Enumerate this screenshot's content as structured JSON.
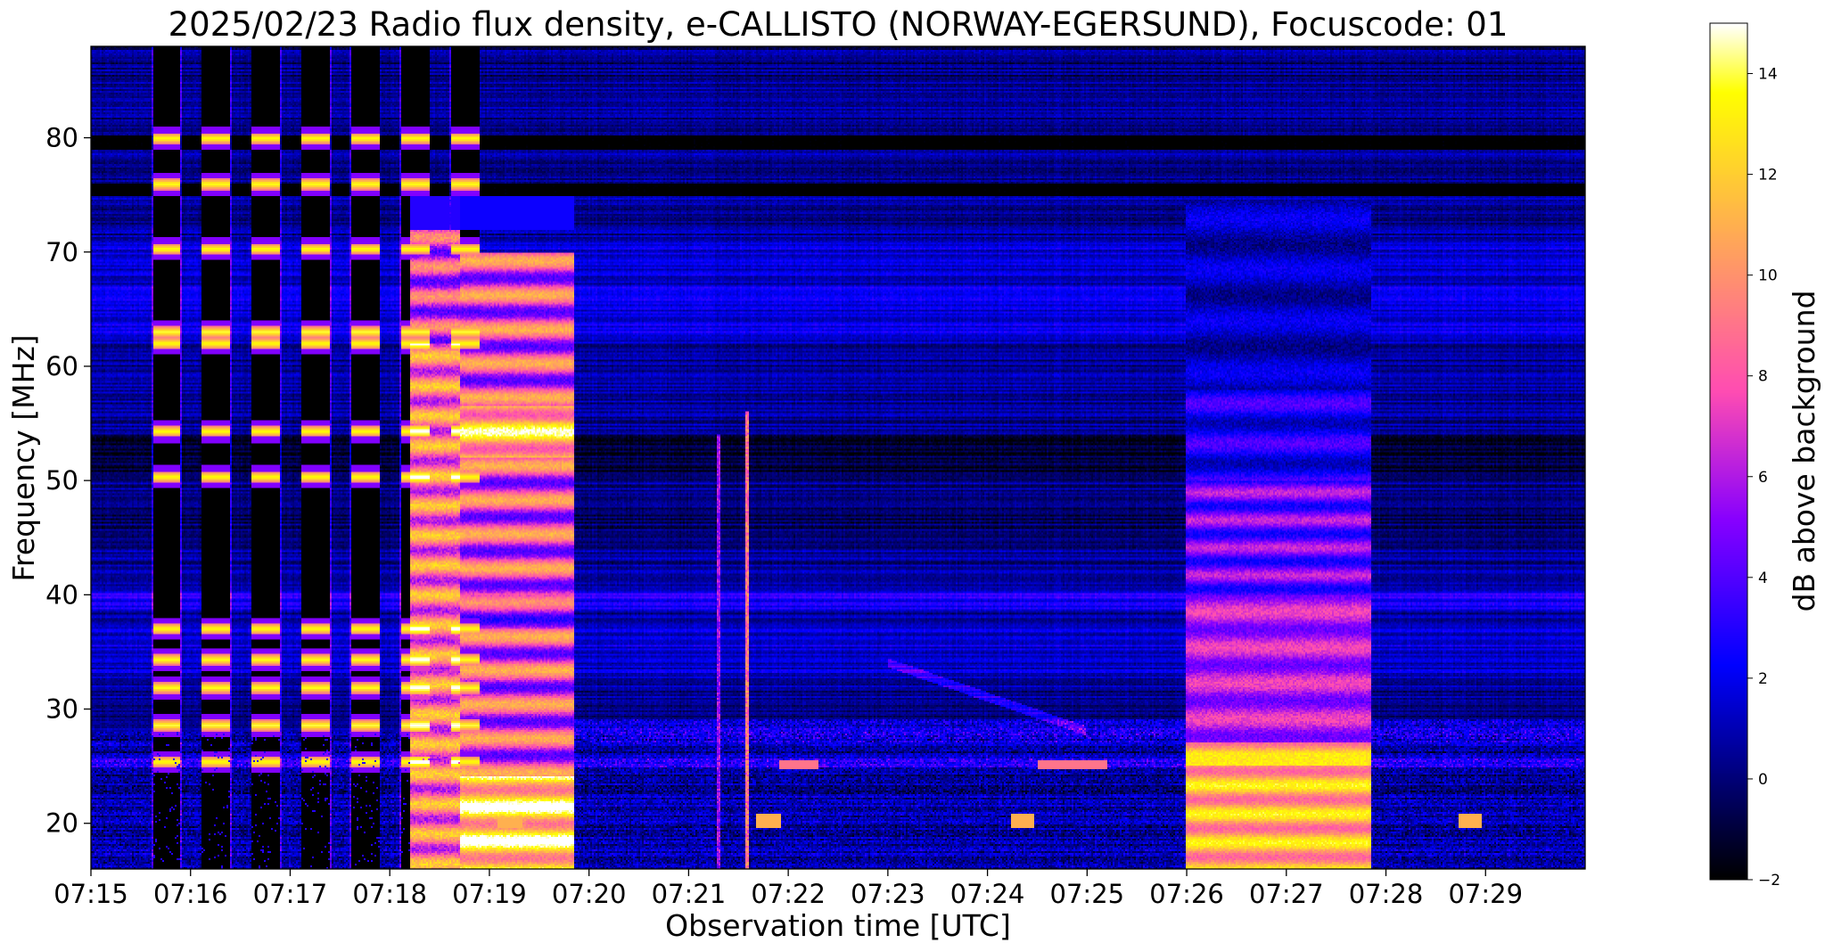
{
  "chart_data": [
    {
      "type": "heatmap",
      "title": "2025/02/23  Radio flux density, e-CALLISTO (NORWAY-EGERSUND), Focuscode: 01",
      "xlabel": "Observation time [UTC]",
      "ylabel": "Frequency [MHz]",
      "x_range": [
        "07:15",
        "07:30"
      ],
      "xlim_minutes": [
        0,
        15
      ],
      "ylim": [
        16,
        88
      ],
      "x_ticks": [
        "07:15",
        "07:16",
        "07:17",
        "07:18",
        "07:19",
        "07:20",
        "07:21",
        "07:22",
        "07:23",
        "07:24",
        "07:25",
        "07:26",
        "07:27",
        "07:28",
        "07:29"
      ],
      "y_ticks": [
        20,
        30,
        40,
        50,
        60,
        70,
        80
      ],
      "colorscale": "gnuplot2",
      "colorbar": {
        "label": "dB above background",
        "range": [
          -2,
          15
        ],
        "ticks": [
          -2,
          0,
          2,
          4,
          6,
          8,
          10,
          12,
          14
        ]
      },
      "features": [
        {
          "type": "calibration_pulses",
          "time_range": [
            "07:15:30",
            "07:18:30"
          ],
          "note": "periodic vertical stripes with bright lines near 80, 76, 50, 28 MHz"
        },
        {
          "type": "strong_emission",
          "time_range": [
            "07:18:00",
            "07:19:50"
          ],
          "freq_range": [
            16,
            70
          ],
          "max_db": 15
        },
        {
          "type": "emission_block",
          "time_range": [
            "07:26:00",
            "07:27:50"
          ],
          "freq_range": [
            16,
            74
          ],
          "max_db": 14
        },
        {
          "type": "rfi_band",
          "freq": 39.5
        },
        {
          "type": "dark_band",
          "freq": 79.5
        },
        {
          "type": "dark_band",
          "freq": 75.5
        }
      ]
    }
  ],
  "colors": {
    "background": "#ffffff",
    "text": "#000000"
  }
}
